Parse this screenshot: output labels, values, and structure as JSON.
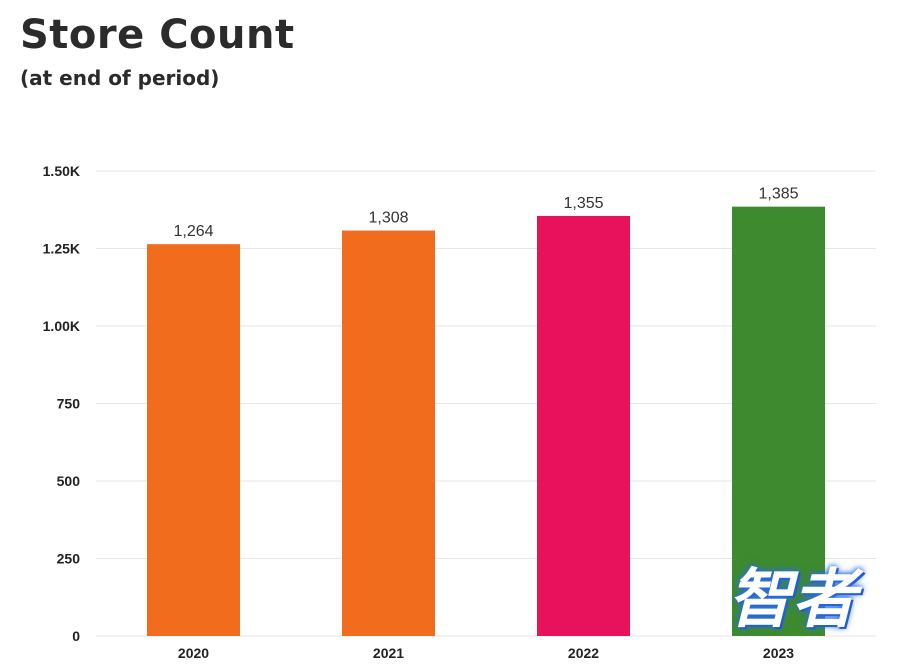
{
  "chart_data": {
    "type": "bar",
    "title": "Store Count",
    "subtitle": "(at end of period)",
    "categories": [
      "2020",
      "2021",
      "2022",
      "2023"
    ],
    "values": [
      1264,
      1308,
      1355,
      1385
    ],
    "value_labels": [
      "1,264",
      "1,308",
      "1,355",
      "1,385"
    ],
    "bar_colors": [
      "#f26c1d",
      "#f26c1d",
      "#e8125c",
      "#3e8a2e"
    ],
    "ylim": [
      0,
      1500
    ],
    "yticks": [
      0,
      250,
      500,
      750,
      1000,
      1250,
      1500
    ],
    "ytick_labels": [
      "0",
      "250",
      "500",
      "750",
      "1.00K",
      "1.25K",
      "1.50K"
    ],
    "xlabel": "",
    "ylabel": "",
    "grid": true,
    "gridline_color": "#e6e6e6"
  },
  "watermark_text": "智者"
}
